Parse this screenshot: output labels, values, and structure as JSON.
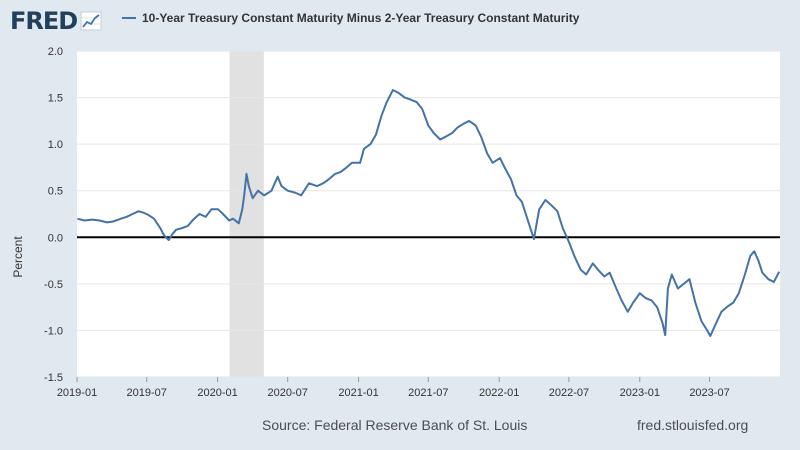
{
  "header": {
    "logo_text": "FRED",
    "series_label": "10-Year Treasury Constant Maturity Minus 2-Year Treasury Constant Maturity"
  },
  "footer": {
    "source": "Source: Federal Reserve Bank of St. Louis",
    "url": "fred.stlouisfed.org"
  },
  "colors": {
    "background": "#e1e9f0",
    "plot_background": "#ffffff",
    "series_line": "#4572a7",
    "recession_band": "#e1e1e1",
    "zero_line": "#000000"
  },
  "chart_data": {
    "type": "line",
    "title": "",
    "xlabel": "",
    "ylabel": "Percent",
    "ylim": [
      -1.5,
      2.0
    ],
    "yticks": [
      "2.0",
      "1.5",
      "1.0",
      "0.5",
      "0.0",
      "-0.5",
      "-1.0",
      "-1.5"
    ],
    "xlim": [
      "2019-01-01",
      "2023-12-31"
    ],
    "xticks": [
      "2019-01",
      "2019-07",
      "2020-01",
      "2020-07",
      "2021-01",
      "2021-07",
      "2022-01",
      "2022-07",
      "2023-01",
      "2023-07"
    ],
    "grid": true,
    "legend": "top",
    "zero_line": true,
    "shaded_regions": [
      {
        "start": "2020-02-01",
        "end": "2020-04-30",
        "label": "recession"
      }
    ],
    "series": [
      {
        "name": "10-Year Treasury Constant Maturity Minus 2-Year Treasury Constant Maturity",
        "points": [
          [
            "2019-01-02",
            0.2
          ],
          [
            "2019-01-20",
            0.18
          ],
          [
            "2019-02-10",
            0.19
          ],
          [
            "2019-03-01",
            0.18
          ],
          [
            "2019-03-20",
            0.16
          ],
          [
            "2019-04-05",
            0.17
          ],
          [
            "2019-04-25",
            0.2
          ],
          [
            "2019-05-10",
            0.22
          ],
          [
            "2019-05-25",
            0.25
          ],
          [
            "2019-06-10",
            0.28
          ],
          [
            "2019-06-25",
            0.26
          ],
          [
            "2019-07-05",
            0.24
          ],
          [
            "2019-07-20",
            0.2
          ],
          [
            "2019-08-05",
            0.1
          ],
          [
            "2019-08-15",
            0.02
          ],
          [
            "2019-08-27",
            -0.03
          ],
          [
            "2019-09-05",
            0.03
          ],
          [
            "2019-09-15",
            0.08
          ],
          [
            "2019-10-01",
            0.1
          ],
          [
            "2019-10-15",
            0.12
          ],
          [
            "2019-11-01",
            0.2
          ],
          [
            "2019-11-15",
            0.25
          ],
          [
            "2019-12-01",
            0.22
          ],
          [
            "2019-12-16",
            0.3
          ],
          [
            "2020-01-02",
            0.3
          ],
          [
            "2020-01-15",
            0.25
          ],
          [
            "2020-01-31",
            0.18
          ],
          [
            "2020-02-10",
            0.2
          ],
          [
            "2020-02-25",
            0.15
          ],
          [
            "2020-03-05",
            0.3
          ],
          [
            "2020-03-10",
            0.45
          ],
          [
            "2020-03-16",
            0.68
          ],
          [
            "2020-03-22",
            0.55
          ],
          [
            "2020-04-01",
            0.42
          ],
          [
            "2020-04-15",
            0.5
          ],
          [
            "2020-05-01",
            0.45
          ],
          [
            "2020-05-20",
            0.5
          ],
          [
            "2020-06-05",
            0.65
          ],
          [
            "2020-06-15",
            0.55
          ],
          [
            "2020-07-01",
            0.5
          ],
          [
            "2020-07-20",
            0.48
          ],
          [
            "2020-08-05",
            0.45
          ],
          [
            "2020-08-25",
            0.58
          ],
          [
            "2020-09-15",
            0.55
          ],
          [
            "2020-10-01",
            0.58
          ],
          [
            "2020-10-15",
            0.62
          ],
          [
            "2020-11-01",
            0.68
          ],
          [
            "2020-11-15",
            0.7
          ],
          [
            "2020-12-01",
            0.75
          ],
          [
            "2020-12-15",
            0.8
          ],
          [
            "2021-01-05",
            0.8
          ],
          [
            "2021-01-15",
            0.95
          ],
          [
            "2021-02-01",
            1.0
          ],
          [
            "2021-02-15",
            1.1
          ],
          [
            "2021-03-01",
            1.3
          ],
          [
            "2021-03-15",
            1.45
          ],
          [
            "2021-03-31",
            1.58
          ],
          [
            "2021-04-15",
            1.55
          ],
          [
            "2021-05-01",
            1.5
          ],
          [
            "2021-05-15",
            1.48
          ],
          [
            "2021-06-01",
            1.45
          ],
          [
            "2021-06-15",
            1.38
          ],
          [
            "2021-07-01",
            1.2
          ],
          [
            "2021-07-15",
            1.12
          ],
          [
            "2021-08-01",
            1.05
          ],
          [
            "2021-08-15",
            1.08
          ],
          [
            "2021-09-01",
            1.12
          ],
          [
            "2021-09-15",
            1.18
          ],
          [
            "2021-10-01",
            1.22
          ],
          [
            "2021-10-15",
            1.25
          ],
          [
            "2021-11-01",
            1.2
          ],
          [
            "2021-11-15",
            1.08
          ],
          [
            "2021-12-01",
            0.9
          ],
          [
            "2021-12-15",
            0.8
          ],
          [
            "2022-01-03",
            0.85
          ],
          [
            "2022-01-15",
            0.75
          ],
          [
            "2022-02-01",
            0.62
          ],
          [
            "2022-02-15",
            0.45
          ],
          [
            "2022-03-01",
            0.38
          ],
          [
            "2022-03-15",
            0.2
          ],
          [
            "2022-04-01",
            -0.02
          ],
          [
            "2022-04-15",
            0.3
          ],
          [
            "2022-05-01",
            0.4
          ],
          [
            "2022-05-15",
            0.35
          ],
          [
            "2022-06-01",
            0.28
          ],
          [
            "2022-06-15",
            0.1
          ],
          [
            "2022-07-01",
            -0.05
          ],
          [
            "2022-07-15",
            -0.2
          ],
          [
            "2022-08-01",
            -0.35
          ],
          [
            "2022-08-15",
            -0.4
          ],
          [
            "2022-09-01",
            -0.28
          ],
          [
            "2022-09-15",
            -0.35
          ],
          [
            "2022-10-01",
            -0.42
          ],
          [
            "2022-10-15",
            -0.38
          ],
          [
            "2022-11-01",
            -0.55
          ],
          [
            "2022-11-15",
            -0.68
          ],
          [
            "2022-12-01",
            -0.8
          ],
          [
            "2022-12-15",
            -0.7
          ],
          [
            "2023-01-01",
            -0.6
          ],
          [
            "2023-01-15",
            -0.65
          ],
          [
            "2023-02-01",
            -0.68
          ],
          [
            "2023-02-15",
            -0.75
          ],
          [
            "2023-03-01",
            -0.92
          ],
          [
            "2023-03-08",
            -1.05
          ],
          [
            "2023-03-15",
            -0.55
          ],
          [
            "2023-03-25",
            -0.4
          ],
          [
            "2023-04-10",
            -0.55
          ],
          [
            "2023-04-25",
            -0.5
          ],
          [
            "2023-05-10",
            -0.45
          ],
          [
            "2023-05-25",
            -0.7
          ],
          [
            "2023-06-10",
            -0.9
          ],
          [
            "2023-06-25",
            -1.0
          ],
          [
            "2023-07-03",
            -1.06
          ],
          [
            "2023-07-15",
            -0.95
          ],
          [
            "2023-08-01",
            -0.8
          ],
          [
            "2023-08-15",
            -0.75
          ],
          [
            "2023-09-01",
            -0.7
          ],
          [
            "2023-09-15",
            -0.6
          ],
          [
            "2023-10-01",
            -0.4
          ],
          [
            "2023-10-15",
            -0.2
          ],
          [
            "2023-10-25",
            -0.15
          ],
          [
            "2023-11-05",
            -0.25
          ],
          [
            "2023-11-15",
            -0.38
          ],
          [
            "2023-12-01",
            -0.45
          ],
          [
            "2023-12-15",
            -0.48
          ],
          [
            "2023-12-29",
            -0.37
          ]
        ]
      }
    ]
  }
}
